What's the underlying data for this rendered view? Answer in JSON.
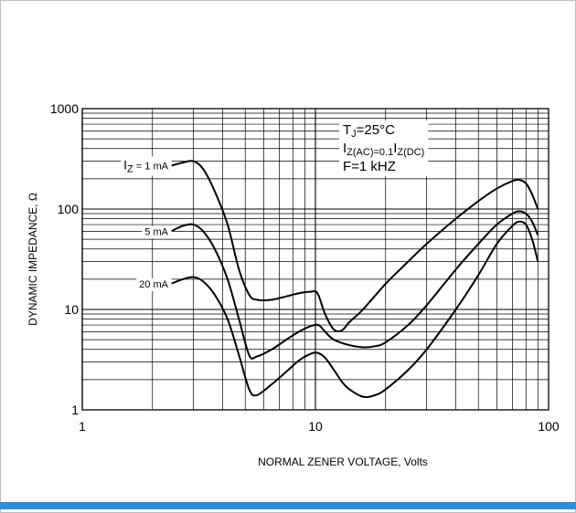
{
  "chart_data": {
    "type": "line",
    "title": "",
    "xlabel": "NORMAL ZENER VOLTAGE, Volts",
    "ylabel": "DYNAMIC IMPEDANCE, Ω",
    "xscale": "log",
    "yscale": "log",
    "xlim": [
      1,
      100
    ],
    "ylim": [
      1,
      1000
    ],
    "grid": true,
    "x_ticks": [
      "1",
      "10",
      "100"
    ],
    "y_ticks": [
      "1",
      "10",
      "100",
      "1000"
    ],
    "conditions": {
      "tj": {
        "main": "T",
        "sub": "J",
        "rest": "=25°C"
      },
      "iz": {
        "a": "I",
        "a_sub": "Z(AC)",
        "b": "=0.1",
        "c": "I",
        "c_sub": "Z(DC)"
      },
      "f": "F=1 kHZ"
    },
    "series": [
      {
        "name": "IZ = 1 mA",
        "label": {
          "main": "I",
          "sub": "Z",
          "rest": " = 1 mA"
        },
        "points": [
          [
            2.4,
            270
          ],
          [
            2.7,
            290
          ],
          [
            3.0,
            300
          ],
          [
            3.3,
            250
          ],
          [
            3.7,
            150
          ],
          [
            4.2,
            70
          ],
          [
            4.7,
            25
          ],
          [
            5.2,
            14
          ],
          [
            5.6,
            12.5
          ],
          [
            6.5,
            12.5
          ],
          [
            7.5,
            13.5
          ],
          [
            8.5,
            14.5
          ],
          [
            9.5,
            15
          ],
          [
            10.2,
            14.5
          ],
          [
            11,
            9
          ],
          [
            12,
            6.3
          ],
          [
            13,
            6.2
          ],
          [
            14,
            7.5
          ],
          [
            16,
            10
          ],
          [
            20,
            18
          ],
          [
            25,
            30
          ],
          [
            30,
            45
          ],
          [
            40,
            80
          ],
          [
            50,
            120
          ],
          [
            60,
            160
          ],
          [
            70,
            190
          ],
          [
            75,
            195
          ],
          [
            80,
            180
          ],
          [
            85,
            140
          ],
          [
            90,
            100
          ]
        ]
      },
      {
        "name": "5 mA",
        "label": {
          "main": "",
          "sub": "",
          "rest": "5 mA"
        },
        "points": [
          [
            2.4,
            60
          ],
          [
            2.7,
            68
          ],
          [
            3.0,
            70
          ],
          [
            3.3,
            60
          ],
          [
            3.7,
            40
          ],
          [
            4.2,
            20
          ],
          [
            4.7,
            8
          ],
          [
            5.2,
            3.5
          ],
          [
            5.6,
            3.4
          ],
          [
            6.5,
            4
          ],
          [
            7.5,
            5
          ],
          [
            8.5,
            6
          ],
          [
            9.5,
            6.8
          ],
          [
            10.3,
            7
          ],
          [
            11,
            6
          ],
          [
            12,
            5
          ],
          [
            14,
            4.4
          ],
          [
            16,
            4.2
          ],
          [
            18,
            4.3
          ],
          [
            20,
            4.7
          ],
          [
            25,
            7
          ],
          [
            30,
            11
          ],
          [
            40,
            25
          ],
          [
            50,
            45
          ],
          [
            60,
            70
          ],
          [
            70,
            90
          ],
          [
            75,
            95
          ],
          [
            80,
            90
          ],
          [
            85,
            75
          ],
          [
            90,
            55
          ]
        ]
      },
      {
        "name": "20 mA",
        "label": {
          "main": "",
          "sub": "",
          "rest": "20 mA"
        },
        "points": [
          [
            2.4,
            18
          ],
          [
            2.7,
            20
          ],
          [
            3.0,
            21
          ],
          [
            3.3,
            19
          ],
          [
            3.7,
            14
          ],
          [
            4.2,
            8
          ],
          [
            4.7,
            3.5
          ],
          [
            5.2,
            1.6
          ],
          [
            5.6,
            1.4
          ],
          [
            6.5,
            1.8
          ],
          [
            7.5,
            2.4
          ],
          [
            8.5,
            3.1
          ],
          [
            9.5,
            3.6
          ],
          [
            10.2,
            3.7
          ],
          [
            11,
            3.3
          ],
          [
            12,
            2.5
          ],
          [
            13,
            1.9
          ],
          [
            14,
            1.6
          ],
          [
            16,
            1.35
          ],
          [
            18,
            1.4
          ],
          [
            20,
            1.6
          ],
          [
            25,
            2.5
          ],
          [
            30,
            4
          ],
          [
            40,
            10
          ],
          [
            50,
            22
          ],
          [
            60,
            45
          ],
          [
            70,
            68
          ],
          [
            75,
            75
          ],
          [
            80,
            70
          ],
          [
            85,
            50
          ],
          [
            90,
            30
          ]
        ]
      }
    ]
  }
}
